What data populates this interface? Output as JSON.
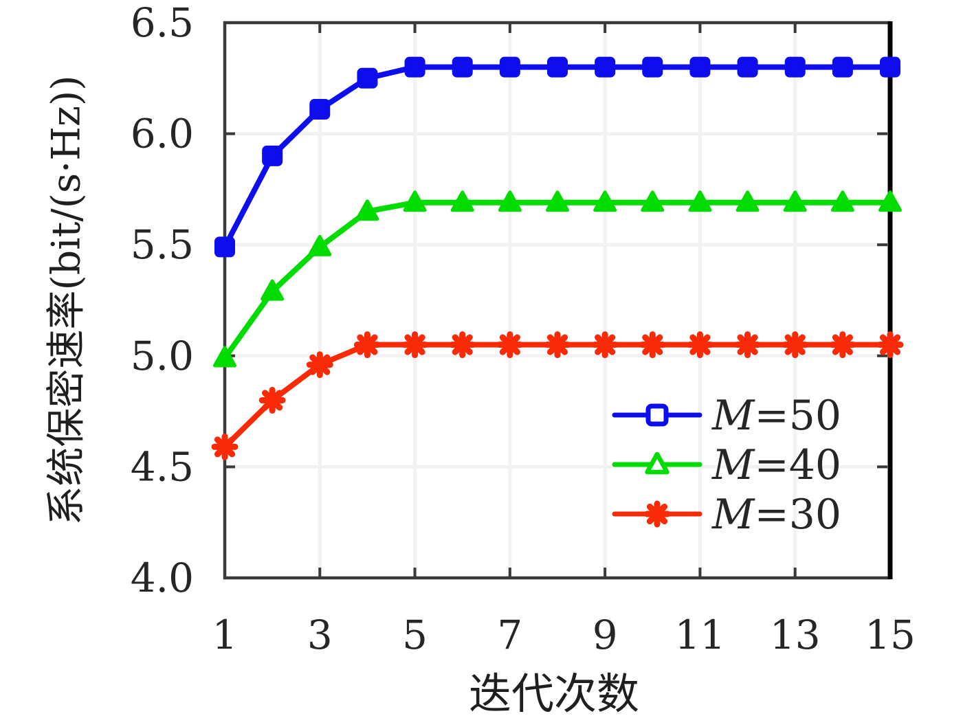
{
  "figure": {
    "background": "#ffffff",
    "text_color": "#262626"
  },
  "chart_data": {
    "type": "line",
    "title": "",
    "xlabel": "迭代次数",
    "ylabel": "系统保密速率(bit/(s·Hz))",
    "xlim": [
      1,
      15
    ],
    "ylim": [
      4.0,
      6.5
    ],
    "xticks": [
      1,
      3,
      5,
      7,
      9,
      11,
      13,
      15
    ],
    "yticks": [
      4.0,
      4.5,
      5.0,
      5.5,
      6.0,
      6.5
    ],
    "grid": true,
    "x": [
      1,
      2,
      3,
      4,
      5,
      6,
      7,
      8,
      9,
      10,
      11,
      12,
      13,
      14,
      15
    ],
    "series": [
      {
        "name": "M=50",
        "color": "#0d0dee",
        "marker": "square",
        "values": [
          5.49,
          5.9,
          6.11,
          6.25,
          6.3,
          6.3,
          6.3,
          6.3,
          6.3,
          6.3,
          6.3,
          6.3,
          6.3,
          6.3,
          6.3
        ]
      },
      {
        "name": "M=40",
        "color": "#00dc00",
        "marker": "triangle",
        "values": [
          4.99,
          5.29,
          5.49,
          5.65,
          5.69,
          5.69,
          5.69,
          5.69,
          5.69,
          5.69,
          5.69,
          5.69,
          5.69,
          5.69,
          5.69
        ]
      },
      {
        "name": "M=30",
        "color": "#f92a07",
        "marker": "asterisk",
        "values": [
          4.59,
          4.8,
          4.96,
          5.05,
          5.05,
          5.05,
          5.05,
          5.05,
          5.05,
          5.05,
          5.05,
          5.05,
          5.05,
          5.05,
          5.05
        ]
      }
    ],
    "legend": {
      "position": "inside-lower-right",
      "frame": false
    },
    "style": {
      "grid_color": "#f2f2f2",
      "axis_color": "#3a3a3a",
      "right_spine_color": "#000000"
    }
  }
}
